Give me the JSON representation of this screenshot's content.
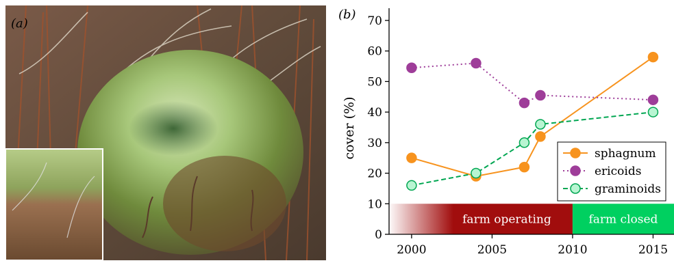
{
  "panel_a": {
    "label": "(a)"
  },
  "panel_b": {
    "label": "(b)"
  },
  "chart_data": {
    "type": "line",
    "xlabel": "",
    "ylabel": "cover (%)",
    "xlim": [
      1998.6,
      2016.3
    ],
    "ylim": [
      0,
      74
    ],
    "x_ticks": [
      2000,
      2005,
      2010,
      2015
    ],
    "y_ticks": [
      0,
      10,
      20,
      30,
      40,
      50,
      60,
      70
    ],
    "series": [
      {
        "name": "sphagnum",
        "color": "#f7931e",
        "line": "solid",
        "marker": "filled",
        "x": [
          2000,
          2004,
          2007,
          2008,
          2015
        ],
        "values": [
          25,
          19,
          22,
          32,
          58
        ]
      },
      {
        "name": "ericoids",
        "color": "#9e3d99",
        "line": "dotted",
        "marker": "filled",
        "x": [
          2000,
          2004,
          2007,
          2008,
          2015
        ],
        "values": [
          54.5,
          56,
          43,
          45.5,
          44
        ]
      },
      {
        "name": "graminoids",
        "color": "#00a651",
        "fill": "#b8f5d2",
        "line": "dashed",
        "marker": "open",
        "x": [
          2000,
          2004,
          2007,
          2008,
          2015
        ],
        "values": [
          16,
          20,
          30,
          36,
          40
        ]
      }
    ],
    "legend": "bottom-right",
    "bands": [
      {
        "label": "farm operating",
        "x_start": 1998.6,
        "x_end": 2010,
        "y_start": 0,
        "y_end": 10,
        "color": "#a10d0d",
        "fade_in": true
      },
      {
        "label": "farm closed",
        "x_start": 2010,
        "x_end": 2016.3,
        "y_start": 0,
        "y_end": 10,
        "color": "#00d060"
      }
    ]
  }
}
